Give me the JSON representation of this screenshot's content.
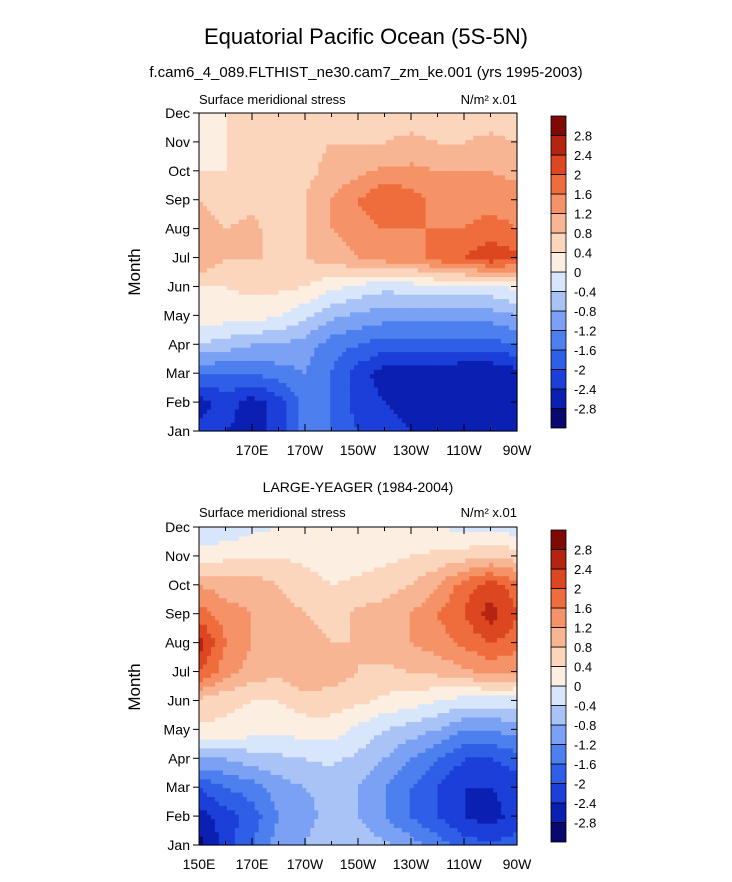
{
  "figure": {
    "title": "Equatorial Pacific Ocean (5S-5N)",
    "subtitle": "f.cam6_4_089.FLTHIST_ne30.cam7_zm_ke.001 (yrs 1995-2003)"
  },
  "colors": {
    "levels": [
      -2.8,
      -2.4,
      -2,
      -1.6,
      -1.2,
      -0.8,
      -0.4,
      0,
      0.4,
      0.8,
      1.2,
      1.6,
      2,
      2.4,
      2.8
    ],
    "palette": [
      "#08086e",
      "#0b20b2",
      "#1b3fd8",
      "#2f5fe6",
      "#4d7fee",
      "#7aa1f3",
      "#a9c3f7",
      "#d8e6fb",
      "#fdeee2",
      "#fbd6bd",
      "#f8b593",
      "#f59267",
      "#ef6c3d",
      "#dc4620",
      "#b52410",
      "#7f0a05"
    ]
  },
  "chart_data": [
    {
      "type": "heatmap",
      "panel_title": "",
      "left_label": "Surface meridional stress",
      "right_label": "N/m² x.01",
      "ylabel": "Month",
      "xlabel": "",
      "x_ticks": [
        "170E",
        "170W",
        "150W",
        "130W",
        "110W",
        "90W"
      ],
      "y_ticks": [
        "Jan",
        "Feb",
        "Mar",
        "Apr",
        "May",
        "Jun",
        "Jul",
        "Aug",
        "Sep",
        "Oct",
        "Nov",
        "Dec"
      ],
      "colorbar_labels": [
        "2.8",
        "2.4",
        "2",
        "1.6",
        "1.2",
        "0.8",
        "0.4",
        "0",
        "-0.4",
        "-0.8",
        "-1.2",
        "-1.6",
        "-2",
        "-2.4",
        "-2.8"
      ],
      "longitudes": [
        "150E",
        "160E",
        "170E",
        "180",
        "170W",
        "160W",
        "150W",
        "140W",
        "130W",
        "120W",
        "110W",
        "100W",
        "90W"
      ],
      "values": [
        [
          -2.2,
          -2.4,
          -2.6,
          -2.2,
          -1.4,
          -1.6,
          -2.0,
          -2.2,
          -2.4,
          -2.4,
          -2.6,
          -2.6,
          -2.4
        ],
        [
          -2.6,
          -2.2,
          -2.6,
          -2.2,
          -1.4,
          -1.6,
          -2.2,
          -2.4,
          -2.6,
          -2.6,
          -2.6,
          -2.8,
          -2.6
        ],
        [
          -1.6,
          -1.6,
          -1.6,
          -1.4,
          -1.2,
          -1.6,
          -2.2,
          -2.6,
          -2.6,
          -2.6,
          -2.8,
          -2.8,
          -2.6
        ],
        [
          -0.4,
          -0.6,
          -0.8,
          -0.8,
          -1.0,
          -1.4,
          -1.6,
          -1.8,
          -1.8,
          -1.8,
          -1.8,
          -1.8,
          -1.6
        ],
        [
          0.2,
          0.2,
          0.2,
          0.0,
          -0.3,
          -0.7,
          -0.9,
          -1.0,
          -1.0,
          -1.0,
          -1.0,
          -1.0,
          -0.8
        ],
        [
          0.4,
          0.4,
          0.5,
          0.5,
          0.4,
          0.1,
          -0.1,
          -0.3,
          -0.2,
          -0.1,
          -0.1,
          -0.1,
          0.1
        ],
        [
          1.2,
          0.8,
          0.8,
          0.8,
          0.8,
          1.0,
          1.2,
          1.4,
          1.4,
          1.8,
          2.0,
          2.3,
          2.1
        ],
        [
          1.0,
          0.8,
          0.9,
          0.6,
          0.8,
          1.2,
          1.4,
          1.6,
          1.6,
          1.6,
          1.6,
          1.8,
          1.6
        ],
        [
          0.8,
          0.6,
          0.7,
          0.6,
          0.8,
          1.2,
          1.6,
          2.0,
          1.8,
          1.4,
          1.4,
          1.4,
          1.4
        ],
        [
          0.4,
          0.4,
          0.5,
          0.6,
          0.7,
          0.9,
          1.1,
          1.3,
          1.3,
          1.2,
          1.2,
          1.2,
          1.1
        ],
        [
          0.2,
          0.4,
          0.5,
          0.6,
          0.7,
          0.8,
          0.8,
          0.8,
          0.9,
          0.8,
          0.8,
          0.9,
          0.8
        ],
        [
          0.4,
          0.4,
          0.5,
          0.6,
          0.6,
          0.6,
          0.6,
          0.6,
          0.6,
          0.6,
          0.6,
          0.6,
          0.6
        ]
      ]
    },
    {
      "type": "heatmap",
      "panel_title": "LARGE-YEAGER (1984-2004)",
      "left_label": "Surface meridional stress",
      "right_label": "N/m² x.01",
      "ylabel": "Month",
      "xlabel": "",
      "x_ticks": [
        "150E",
        "170E",
        "170W",
        "150W",
        "130W",
        "110W",
        "90W"
      ],
      "y_ticks": [
        "Jan",
        "Feb",
        "Mar",
        "Apr",
        "May",
        "Jun",
        "Jul",
        "Aug",
        "Sep",
        "Oct",
        "Nov",
        "Dec"
      ],
      "colorbar_labels": [
        "2.8",
        "2.4",
        "2",
        "1.6",
        "1.2",
        "0.8",
        "0.4",
        "0",
        "-0.4",
        "-0.8",
        "-1.2",
        "-1.6",
        "-2",
        "-2.4",
        "-2.8"
      ],
      "longitudes": [
        "150E",
        "160E",
        "170E",
        "180",
        "170W",
        "160W",
        "150W",
        "140W",
        "130W",
        "120W",
        "110W",
        "100W",
        "90W"
      ],
      "values": [
        [
          -3.0,
          -2.2,
          -1.6,
          -1.0,
          -0.8,
          -0.6,
          -0.5,
          -0.7,
          -1.0,
          -1.4,
          -1.8,
          -1.9,
          -1.8
        ],
        [
          -2.6,
          -2.2,
          -1.8,
          -1.2,
          -0.9,
          -0.7,
          -0.8,
          -1.2,
          -1.6,
          -2.0,
          -2.4,
          -2.6,
          -2.2
        ],
        [
          -2.0,
          -1.6,
          -1.4,
          -1.0,
          -0.8,
          -0.7,
          -0.8,
          -1.2,
          -1.6,
          -2.0,
          -2.4,
          -2.4,
          -2.2
        ],
        [
          -0.8,
          -0.8,
          -0.6,
          -0.5,
          -0.4,
          -0.3,
          -0.5,
          -0.8,
          -1.2,
          -1.6,
          -2.0,
          -2.0,
          -1.8
        ],
        [
          0.3,
          0.3,
          0.2,
          0.1,
          0.2,
          0.2,
          -0.1,
          -0.4,
          -0.6,
          -0.8,
          -1.2,
          -1.2,
          -1.0
        ],
        [
          0.7,
          0.5,
          0.4,
          0.4,
          0.6,
          0.6,
          0.5,
          0.3,
          0.2,
          0.0,
          -0.2,
          -0.2,
          -0.2
        ],
        [
          2.0,
          1.4,
          1.0,
          0.9,
          1.2,
          1.0,
          0.8,
          0.7,
          0.8,
          0.9,
          1.1,
          1.3,
          1.2
        ],
        [
          2.6,
          1.6,
          1.2,
          1.0,
          1.0,
          0.8,
          0.8,
          1.0,
          1.2,
          1.4,
          1.7,
          2.0,
          1.8
        ],
        [
          1.8,
          1.4,
          1.2,
          1.0,
          0.8,
          0.6,
          0.9,
          1.0,
          1.2,
          1.6,
          2.0,
          2.6,
          2.0
        ],
        [
          1.2,
          1.0,
          1.0,
          0.8,
          0.6,
          0.4,
          0.5,
          0.6,
          0.8,
          1.2,
          1.8,
          2.2,
          1.8
        ],
        [
          0.2,
          0.3,
          0.4,
          0.4,
          0.3,
          0.2,
          0.2,
          0.3,
          0.4,
          0.5,
          0.6,
          0.8,
          0.6
        ],
        [
          -0.4,
          -0.3,
          -0.1,
          0.0,
          0.2,
          0.3,
          0.3,
          0.2,
          0.1,
          0.0,
          -0.1,
          -0.2,
          -0.2
        ]
      ]
    }
  ]
}
